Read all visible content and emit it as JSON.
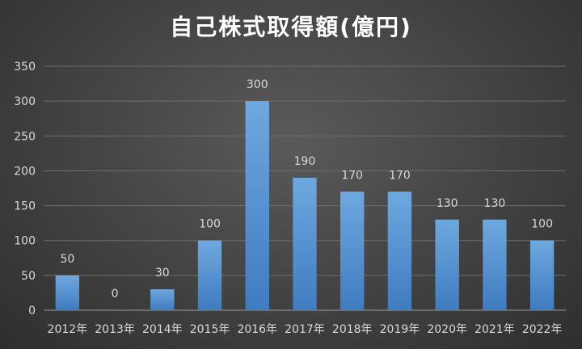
{
  "chart_data": {
    "type": "bar",
    "title": "自己株式取得額(億円)",
    "categories": [
      "2012年",
      "2013年",
      "2014年",
      "2015年",
      "2016年",
      "2017年",
      "2018年",
      "2019年",
      "2020年",
      "2021年",
      "2022年"
    ],
    "values": [
      50,
      0,
      30,
      100,
      300,
      190,
      170,
      170,
      130,
      130,
      100
    ],
    "ylim": [
      0,
      350
    ],
    "yticks": [
      0,
      50,
      100,
      150,
      200,
      250,
      300,
      350
    ],
    "grid": true,
    "data_labels": true,
    "colors": {
      "bar_top": "#6fa8e0",
      "bar_bottom": "#3f7cc0",
      "background": "#404040",
      "text": "#d9d9d9"
    }
  }
}
